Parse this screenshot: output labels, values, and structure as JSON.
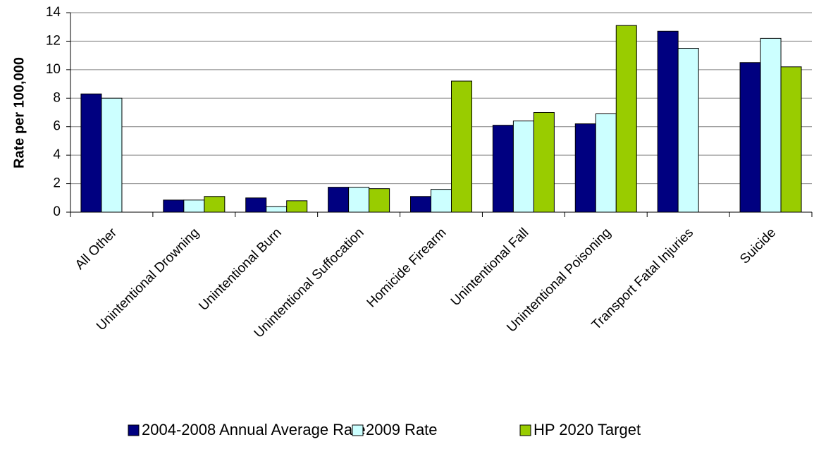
{
  "chart_data": {
    "type": "bar",
    "y_label": "Rate per 100,000",
    "categories": [
      "All Other",
      "Unintentional Drowning",
      "Unintentional Burn",
      "Unintentional Suffocation",
      "Homicide Firearm",
      "Unintentional Fall",
      "Unintentional Poisoning",
      "Transport Fatal Injuries",
      "Suicide"
    ],
    "series": [
      {
        "name": "2004-2008 Annual Average Rate",
        "color": "#000080",
        "values": [
          8.3,
          0.85,
          1.0,
          1.75,
          1.1,
          6.1,
          6.2,
          12.7,
          10.5
        ]
      },
      {
        "name": "2009 Rate",
        "color": "#ccffff",
        "values": [
          8.0,
          0.85,
          0.4,
          1.75,
          1.6,
          6.4,
          6.9,
          11.5,
          12.2
        ]
      },
      {
        "name": "HP 2020 Target",
        "color": "#99cc00",
        "values": [
          null,
          1.1,
          0.8,
          1.65,
          9.2,
          7.0,
          13.1,
          null,
          10.2
        ]
      }
    ],
    "ylim": [
      0,
      14
    ],
    "yticks": [
      0,
      2,
      4,
      6,
      8,
      10,
      12,
      14
    ],
    "grid": true,
    "legend": "bottom"
  }
}
